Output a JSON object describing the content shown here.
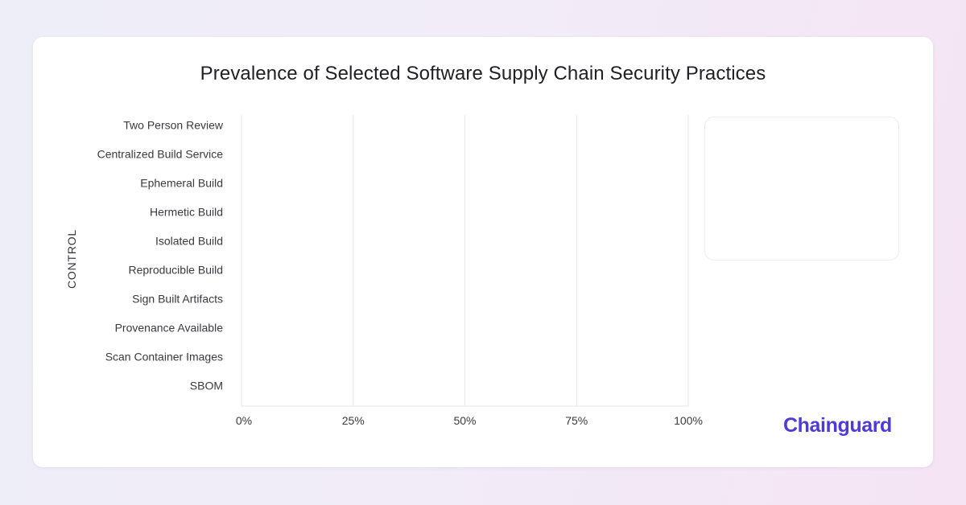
{
  "chart_data": {
    "type": "bar",
    "orientation": "horizontal",
    "title": "Prevalence of Selected Software Supply Chain Security Practices",
    "ylabel": "CONTROL",
    "xlabel": "",
    "categories": [
      "Two Person Review",
      "Centralized Build Service",
      "Ephemeral Build",
      "Hermetic Build",
      "Isolated Build",
      "Reproducible Build",
      "Sign Built Artifacts",
      "Provenance Available",
      "Scan Container Images",
      "SBOM"
    ],
    "x_ticks": [
      "0%",
      "25%",
      "50%",
      "75%",
      "100%"
    ],
    "x_tick_values": [
      0,
      25,
      50,
      75,
      100
    ],
    "xlim": [
      0,
      100
    ],
    "series": [],
    "grid": true,
    "legend_placement": "top-right"
  },
  "brand": {
    "name": "Chainguard",
    "color": "#4f3ad8"
  },
  "colors": {
    "grid": "#e6e6f4",
    "tick_text": "#3a3a3f"
  }
}
